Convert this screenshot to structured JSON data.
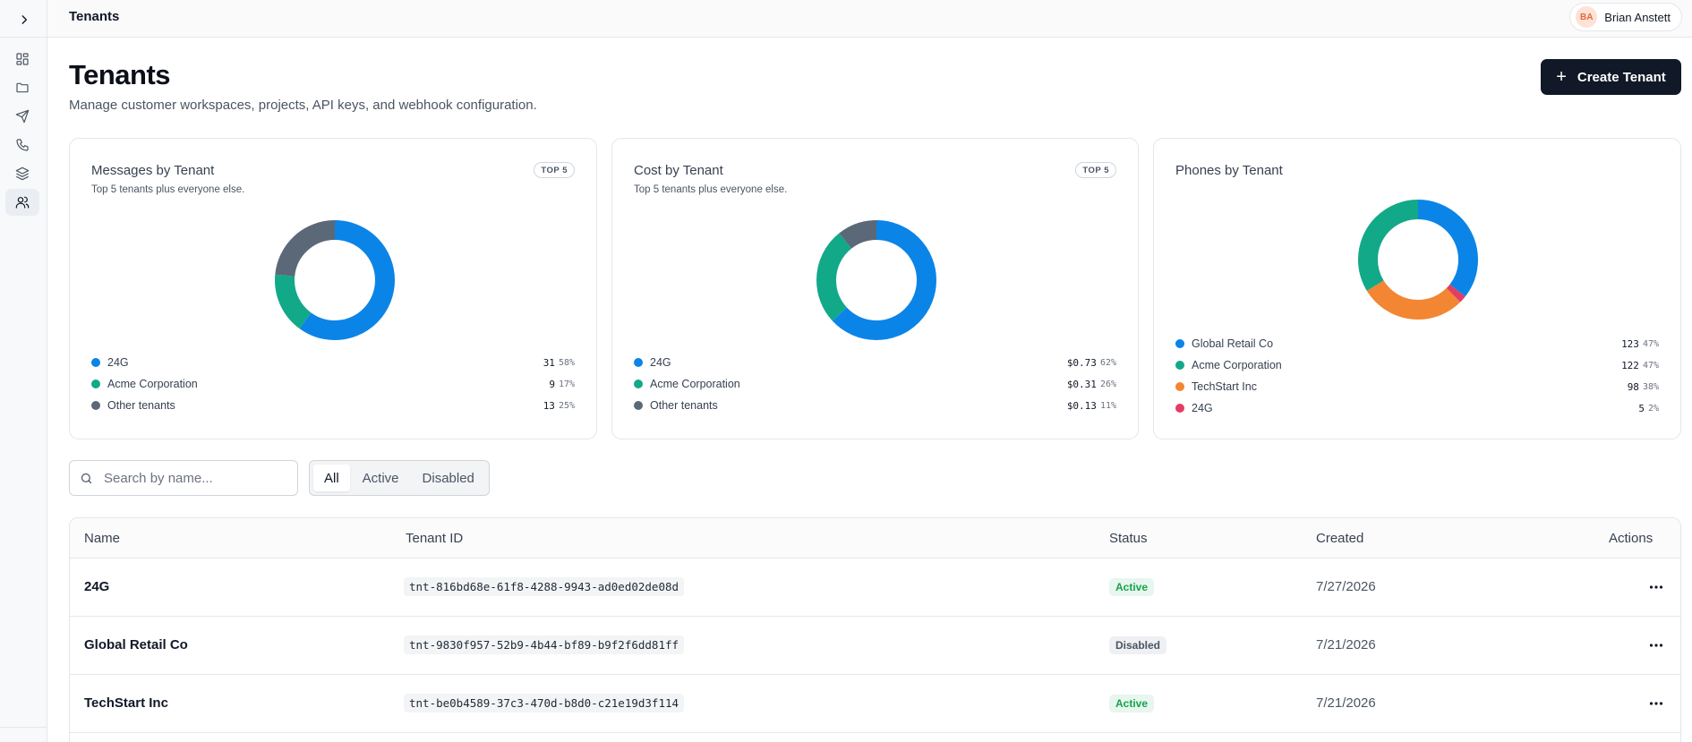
{
  "header": {
    "title": "Tenants"
  },
  "user": {
    "initials": "BA",
    "name": "Brian Anstett"
  },
  "sidebar": {
    "items": [
      {
        "icon": "dashboard-icon",
        "active": false
      },
      {
        "icon": "folder-icon",
        "active": false
      },
      {
        "icon": "send-icon",
        "active": false
      },
      {
        "icon": "phone-icon",
        "active": false
      },
      {
        "icon": "layers-icon",
        "active": false
      },
      {
        "icon": "users-icon",
        "active": true
      }
    ]
  },
  "page": {
    "title": "Tenants",
    "subtitle": "Manage customer workspaces, projects, API keys, and webhook configuration.",
    "create_button": "Create Tenant"
  },
  "colors": {
    "blue": "#0b84e8",
    "green": "#12a989",
    "slate": "#5b6878",
    "orange": "#f28633",
    "pink": "#e23d63"
  },
  "cards": [
    {
      "title": "Messages by Tenant",
      "subtitle": "Top 5 tenants plus everyone else.",
      "badge": "TOP 5",
      "legend": [
        {
          "label": "24G",
          "value": "31",
          "pct": "58%",
          "color": "#0b84e8"
        },
        {
          "label": "Acme Corporation",
          "value": "9",
          "pct": "17%",
          "color": "#12a989"
        },
        {
          "label": "Other tenants",
          "value": "13",
          "pct": "25%",
          "color": "#5b6878"
        }
      ]
    },
    {
      "title": "Cost by Tenant",
      "subtitle": "Top 5 tenants plus everyone else.",
      "badge": "TOP 5",
      "legend": [
        {
          "label": "24G",
          "value": "$0.73",
          "pct": "62%",
          "color": "#0b84e8"
        },
        {
          "label": "Acme Corporation",
          "value": "$0.31",
          "pct": "26%",
          "color": "#12a989"
        },
        {
          "label": "Other tenants",
          "value": "$0.13",
          "pct": "11%",
          "color": "#5b6878"
        }
      ]
    },
    {
      "title": "Phones by Tenant",
      "legend": [
        {
          "label": "Global Retail Co",
          "value": "123",
          "pct": "47%",
          "color": "#0b84e8"
        },
        {
          "label": "Acme Corporation",
          "value": "122",
          "pct": "47%",
          "color": "#12a989"
        },
        {
          "label": "TechStart Inc",
          "value": "98",
          "pct": "38%",
          "color": "#f28633"
        },
        {
          "label": "24G",
          "value": "5",
          "pct": "2%",
          "color": "#e23d63"
        }
      ]
    }
  ],
  "search": {
    "placeholder": "Search by name..."
  },
  "filters": {
    "tabs": [
      "All",
      "Active",
      "Disabled"
    ],
    "selected": "All"
  },
  "table": {
    "columns": [
      "Name",
      "Tenant ID",
      "Status",
      "Created",
      "Actions"
    ],
    "rows": [
      {
        "name": "24G",
        "id": "tnt-816bd68e-61f8-4288-9943-ad0ed02de08d",
        "status": "Active",
        "created": "7/27/2026"
      },
      {
        "name": "Global Retail Co",
        "id": "tnt-9830f957-52b9-4b44-bf89-b9f2f6dd81ff",
        "status": "Disabled",
        "created": "7/21/2026"
      },
      {
        "name": "TechStart Inc",
        "id": "tnt-be0b4589-37c3-470d-b8d0-c21e19d3f114",
        "status": "Active",
        "created": "7/21/2026"
      }
    ]
  }
}
